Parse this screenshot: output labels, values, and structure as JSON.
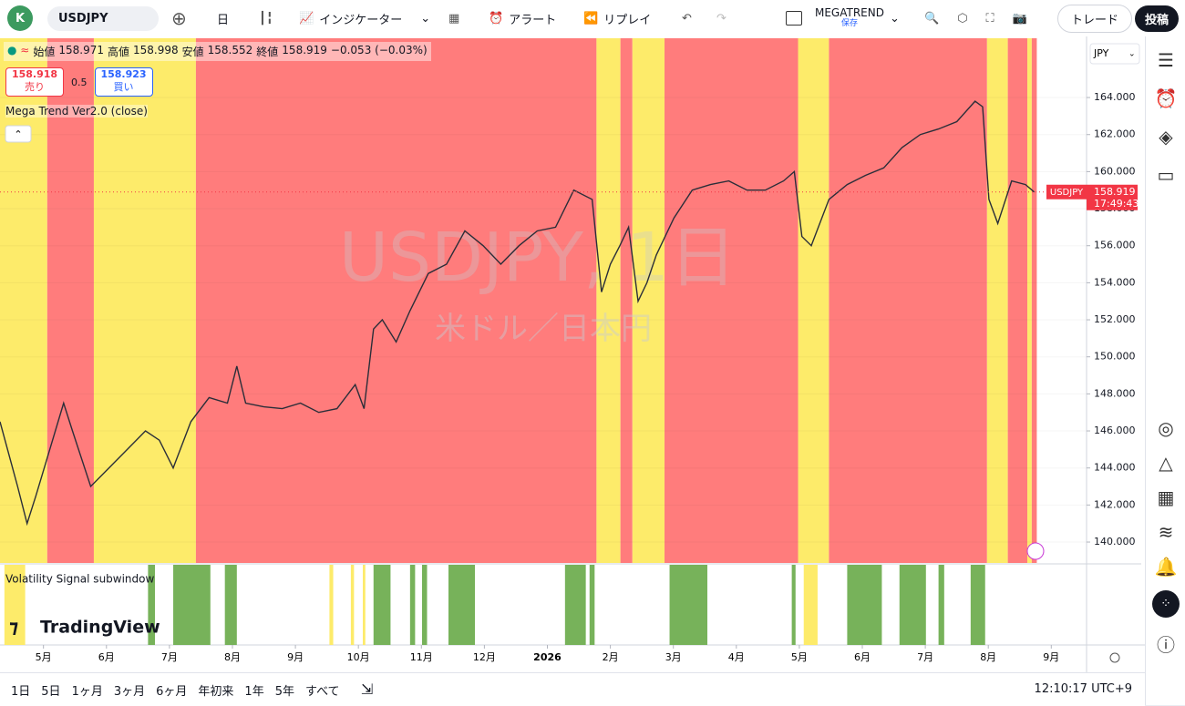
{
  "toolbar": {
    "avatar": "K",
    "symbol": "USDJPY",
    "interval": "日",
    "indicators": "インジケーター",
    "alert": "アラート",
    "replay": "リプレイ",
    "layout_name": "MEGATREND",
    "layout_status": "保存",
    "trade": "トレード",
    "publish": "投稿"
  },
  "legend": {
    "open_label": "始値",
    "open": "158.971",
    "high_label": "高値",
    "high": "158.998",
    "low_label": "安値",
    "low": "158.552",
    "close_label": "終値",
    "close": "158.919",
    "change": "−0.053 (−0.03%)",
    "sell_price": "158.918",
    "sell": "売り",
    "spread": "0.5",
    "buy_price": "158.923",
    "buy": "買い",
    "indicator": "Mega Trend Ver2.0 (close)"
  },
  "watermark": {
    "symbol": "USDJPY, 1日",
    "description": "米ドル／日本円"
  },
  "price_axis": {
    "currency": "JPY",
    "last_symbol": "USDJPY",
    "last_price": "158.919",
    "countdown": "17:49:43"
  },
  "subwindow_title": "Volatility Signal subwindow",
  "brand": "TradingView",
  "chart_data": {
    "type": "line",
    "color": "#2a2e39",
    "x": [
      -0.69,
      -0.41,
      -0.26,
      -0.12,
      0.1,
      0.32,
      0.46,
      0.75,
      1.04,
      1.33,
      1.62,
      1.84,
      2.06,
      2.34,
      2.63,
      2.92,
      3.07,
      3.21,
      3.5,
      3.79,
      4.08,
      4.37,
      4.66,
      4.95,
      5.09,
      5.24,
      5.38,
      5.6,
      5.82,
      6.11,
      6.4,
      6.69,
      6.98,
      7.26,
      7.55,
      7.84,
      8.13,
      8.42,
      8.71,
      8.86,
      9.0,
      9.15,
      9.29,
      9.44,
      9.58,
      9.73,
      10.01,
      10.3,
      10.59,
      10.88,
      11.17,
      11.46,
      11.75,
      11.92,
      12.04,
      12.19,
      12.47,
      12.76,
      13.05,
      13.34,
      13.63,
      13.92,
      14.21,
      14.5,
      14.79,
      14.91,
      15.01,
      15.15,
      15.37,
      15.59,
      15.73
    ],
    "values": [
      146.5,
      143,
      141,
      142.5,
      145,
      147.5,
      146,
      143,
      144,
      145,
      146,
      145.5,
      144,
      146.5,
      147.8,
      147.5,
      149.5,
      147.5,
      147.3,
      147.2,
      147.5,
      147,
      147.2,
      148.5,
      147.2,
      151.5,
      152,
      150.8,
      152.5,
      154.5,
      155,
      156.8,
      156,
      155,
      156,
      156.8,
      157,
      159,
      158.5,
      153.5,
      155,
      156,
      157,
      153,
      154,
      155.5,
      157.5,
      159,
      159.3,
      159.5,
      159,
      159,
      159.5,
      160,
      156.5,
      156,
      158.5,
      159.3,
      159.8,
      160.2,
      161.3,
      162,
      162.3,
      162.7,
      163.8,
      163.5,
      158.5,
      157.2,
      159.5,
      159.3,
      158.9
    ],
    "xlim": [
      -0.69,
      16.56
    ],
    "xticks": [
      {
        "value": 0,
        "label": "5月"
      },
      {
        "value": 1,
        "label": "6月"
      },
      {
        "value": 2,
        "label": "7月"
      },
      {
        "value": 3,
        "label": "8月"
      },
      {
        "value": 4,
        "label": "9月"
      },
      {
        "value": 5,
        "label": "10月"
      },
      {
        "value": 6,
        "label": "11月"
      },
      {
        "value": 7,
        "label": "12月"
      },
      {
        "value": 8,
        "label": "2026"
      },
      {
        "value": 9,
        "label": "2月"
      },
      {
        "value": 10,
        "label": "3月"
      },
      {
        "value": 11,
        "label": "4月"
      },
      {
        "value": 12,
        "label": "5月"
      },
      {
        "value": 13,
        "label": "6月"
      },
      {
        "value": 14,
        "label": "7月"
      },
      {
        "value": 15,
        "label": "8月"
      },
      {
        "value": 16,
        "label": "9月"
      }
    ],
    "ylim": [
      138.87,
      167.2
    ],
    "yticks": [
      {
        "value": 140,
        "label": "140.000"
      },
      {
        "value": 142,
        "label": "142.000"
      },
      {
        "value": 144,
        "label": "144.000"
      },
      {
        "value": 146,
        "label": "146.000"
      },
      {
        "value": 148,
        "label": "148.000"
      },
      {
        "value": 150,
        "label": "150.000"
      },
      {
        "value": 152,
        "label": "152.000"
      },
      {
        "value": 154,
        "label": "154.000"
      },
      {
        "value": 156,
        "label": "156.000"
      },
      {
        "value": 158,
        "label": "158.000"
      },
      {
        "value": 160,
        "label": "160.000"
      },
      {
        "value": 162,
        "label": "162.000"
      },
      {
        "value": 164,
        "label": "164.000"
      }
    ],
    "bands": [
      {
        "color": "#fdeb6a",
        "from": -0.69,
        "to": 0.06
      },
      {
        "color": "#ff7c7c",
        "from": 0.06,
        "to": 0.8
      },
      {
        "color": "#fdeb6a",
        "from": 0.8,
        "to": 2.42
      },
      {
        "color": "#ff7c7c",
        "from": 2.42,
        "to": 8.78
      },
      {
        "color": "#fdeb6a",
        "from": 8.78,
        "to": 9.16
      },
      {
        "color": "#ff7c7c",
        "from": 9.16,
        "to": 9.35
      },
      {
        "color": "#fdeb6a",
        "from": 9.35,
        "to": 9.86
      },
      {
        "color": "#ff7c7c",
        "from": 9.86,
        "to": 11.98
      },
      {
        "color": "#fdeb6a",
        "from": 11.98,
        "to": 12.47
      },
      {
        "color": "#ff7c7c",
        "from": 12.47,
        "to": 14.98
      },
      {
        "color": "#fdeb6a",
        "from": 14.98,
        "to": 15.31
      },
      {
        "color": "#ff7c7c",
        "from": 15.31,
        "to": 15.62
      },
      {
        "color": "#fdeb6a",
        "from": 15.62,
        "to": 15.69
      },
      {
        "color": "#ff7c7c",
        "from": 15.69,
        "to": 15.77
      }
    ],
    "signal": [
      {
        "color": "#fdeb6a",
        "from": -0.62,
        "to": -0.29
      },
      {
        "color": "#77b25a",
        "from": 1.66,
        "to": 1.77
      },
      {
        "color": "#77b25a",
        "from": 2.06,
        "to": 2.65
      },
      {
        "color": "#77b25a",
        "from": 2.88,
        "to": 3.07
      },
      {
        "color": "#fdeb6a",
        "from": 4.54,
        "to": 4.6
      },
      {
        "color": "#fdeb6a",
        "from": 4.88,
        "to": 4.93
      },
      {
        "color": "#fdeb6a",
        "from": 5.07,
        "to": 5.11
      },
      {
        "color": "#77b25a",
        "from": 5.24,
        "to": 5.51
      },
      {
        "color": "#77b25a",
        "from": 5.82,
        "to": 5.9
      },
      {
        "color": "#77b25a",
        "from": 6.01,
        "to": 6.09
      },
      {
        "color": "#77b25a",
        "from": 6.43,
        "to": 6.85
      },
      {
        "color": "#77b25a",
        "from": 8.28,
        "to": 8.61
      },
      {
        "color": "#77b25a",
        "from": 8.67,
        "to": 8.75
      },
      {
        "color": "#77b25a",
        "from": 9.94,
        "to": 10.54
      },
      {
        "color": "#77b25a",
        "from": 11.88,
        "to": 11.94
      },
      {
        "color": "#fdeb6a",
        "from": 12.07,
        "to": 12.29
      },
      {
        "color": "#77b25a",
        "from": 12.76,
        "to": 13.31
      },
      {
        "color": "#77b25a",
        "from": 13.59,
        "to": 14.01
      },
      {
        "color": "#77b25a",
        "from": 14.21,
        "to": 14.3
      },
      {
        "color": "#77b25a",
        "from": 14.72,
        "to": 14.95
      }
    ]
  },
  "bottom_bar": {
    "ranges": [
      "1日",
      "5日",
      "1ヶ月",
      "3ヶ月",
      "6ヶ月",
      "年初来",
      "1年",
      "5年",
      "すべて"
    ],
    "clock": "12:10:17 UTC+9"
  }
}
